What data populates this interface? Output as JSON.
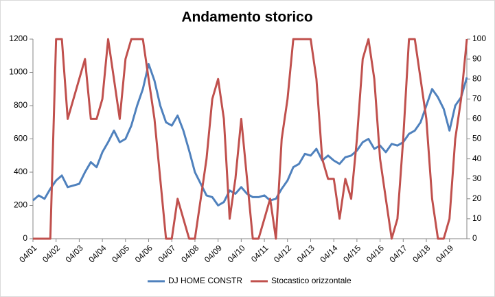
{
  "chart_data": {
    "type": "line",
    "title": "Andamento storico",
    "categories": [
      "04/01",
      null,
      null,
      null,
      "04/02",
      null,
      null,
      null,
      "04/03",
      null,
      null,
      null,
      "04/04",
      null,
      null,
      null,
      "04/05",
      null,
      null,
      null,
      "04/06",
      null,
      null,
      null,
      "04/07",
      null,
      null,
      null,
      "04/08",
      null,
      null,
      null,
      "04/09",
      null,
      null,
      null,
      "04/10",
      null,
      null,
      null,
      "04/11",
      null,
      null,
      null,
      "04/12",
      null,
      null,
      null,
      "04/13",
      null,
      null,
      null,
      "04/14",
      null,
      null,
      null,
      "04/15",
      null,
      null,
      null,
      "04/16",
      null,
      null,
      null,
      "04/17",
      null,
      null,
      null,
      "04/18",
      null,
      null,
      null,
      "04/19",
      null,
      null,
      null
    ],
    "series": [
      {
        "name": "DJ HOME CONSTR",
        "color": "#4f81bd",
        "values": [
          230,
          260,
          240,
          300,
          350,
          380,
          310,
          320,
          330,
          400,
          460,
          430,
          520,
          580,
          650,
          580,
          600,
          680,
          800,
          900,
          1050,
          950,
          800,
          700,
          680,
          740,
          650,
          530,
          400,
          330,
          260,
          250,
          200,
          220,
          290,
          270,
          310,
          270,
          250,
          250,
          260,
          230,
          240,
          300,
          350,
          430,
          450,
          510,
          500,
          540,
          470,
          500,
          470,
          450,
          490,
          500,
          530,
          580,
          600,
          540,
          560,
          520,
          570,
          560,
          580,
          630,
          650,
          700,
          800,
          900,
          850,
          780,
          650,
          800,
          850,
          970
        ]
      },
      {
        "name": "Stocastico orizzontale",
        "color": "#c0504d",
        "axis": "y2",
        "values": [
          0,
          0,
          0,
          0,
          100,
          100,
          60,
          70,
          80,
          90,
          60,
          60,
          70,
          100,
          80,
          60,
          90,
          100,
          100,
          100,
          80,
          60,
          30,
          0,
          0,
          20,
          10,
          0,
          0,
          20,
          40,
          70,
          80,
          60,
          10,
          30,
          60,
          30,
          0,
          0,
          10,
          20,
          0,
          50,
          70,
          100,
          100,
          100,
          100,
          80,
          40,
          30,
          30,
          10,
          30,
          20,
          50,
          90,
          100,
          80,
          40,
          20,
          0,
          10,
          50,
          100,
          100,
          80,
          60,
          20,
          0,
          0,
          10,
          50,
          70,
          100
        ]
      }
    ],
    "ylim": [
      0,
      1200
    ],
    "yticks": [
      0,
      200,
      400,
      600,
      800,
      1000,
      1200
    ],
    "y2lim": [
      0,
      100
    ],
    "y2ticks": [
      0,
      10,
      20,
      30,
      40,
      50,
      60,
      70,
      80,
      90,
      100
    ],
    "legend": "bottom"
  }
}
